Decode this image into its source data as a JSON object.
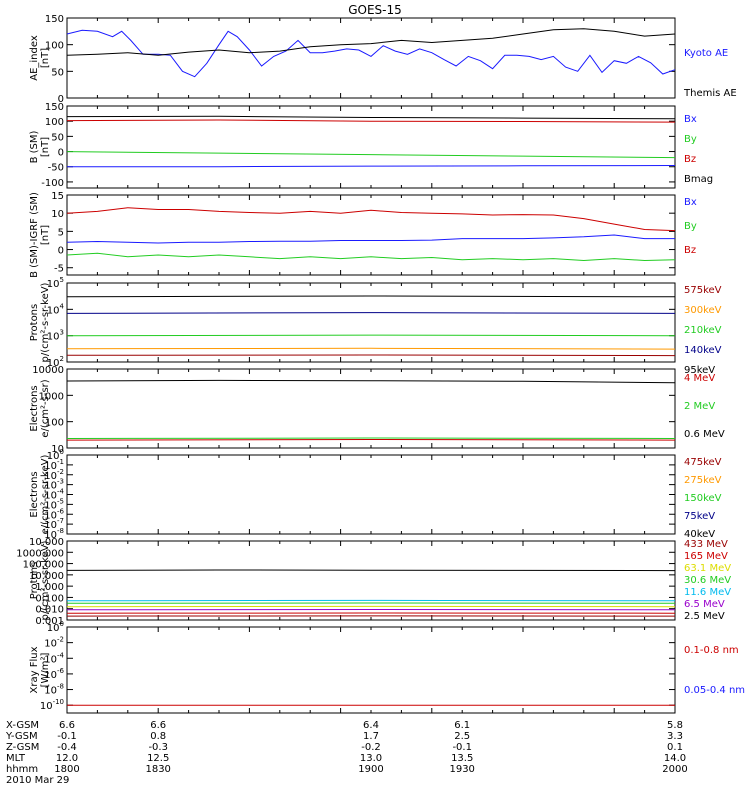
{
  "title": "GOES-15",
  "colors": {
    "black": "#000000",
    "blue": "#1a1aff",
    "red": "#cc0000",
    "green": "#22cc22",
    "orange": "#ff9900",
    "cyan": "#00bbee",
    "yellow": "#dddd00",
    "purple": "#9900cc",
    "darkred": "#990000",
    "navy": "#000088"
  },
  "footer": {
    "rows": [
      {
        "label": "X-GSM",
        "values": [
          "6.6",
          "6.6",
          "6.4",
          "6.1",
          "5.8"
        ]
      },
      {
        "label": "Y-GSM",
        "values": [
          "-0.1",
          "0.8",
          "1.7",
          "2.5",
          "3.3"
        ]
      },
      {
        "label": "Z-GSM",
        "values": [
          "-0.4",
          "-0.3",
          "-0.2",
          "-0.1",
          "0.1"
        ]
      },
      {
        "label": "MLT",
        "values": [
          "12.0",
          "12.5",
          "13.0",
          "13.5",
          "14.0"
        ]
      },
      {
        "label": "hhmm",
        "values": [
          "1800",
          "1830",
          "1900",
          "1930",
          "2000"
        ]
      }
    ],
    "date": "2010 Mar 29"
  },
  "chart_data": [
    {
      "type": "line",
      "ylabel": [
        "AE_index",
        "[nT]"
      ],
      "scale": "linear",
      "ylim": [
        0,
        150
      ],
      "ticks": [
        {
          "v": 0,
          "l": "0"
        },
        {
          "v": 50,
          "l": "50"
        },
        {
          "v": 100,
          "l": "100"
        },
        {
          "v": 150,
          "l": "150"
        }
      ],
      "xlim": [
        1800,
        2000
      ],
      "series": [
        {
          "name": "Kyoto AE",
          "color": "blue",
          "x": [
            1800,
            1805,
            1810,
            1815,
            1818,
            1821,
            1825,
            1830,
            1834,
            1838,
            1842,
            1846,
            1850,
            1853,
            1856,
            1860,
            1864,
            1868,
            1872,
            1876,
            1880,
            1884,
            1888,
            1892,
            1896,
            1900,
            1904,
            1908,
            1912,
            1916,
            1920,
            1924,
            1928,
            1932,
            1936,
            1940,
            1944,
            1948,
            1952,
            1956,
            1960,
            1964,
            1968,
            1972,
            1976,
            1980,
            1984,
            1988,
            1992,
            1996,
            2000
          ],
          "y": [
            120,
            127,
            125,
            115,
            125,
            108,
            82,
            82,
            80,
            50,
            40,
            65,
            100,
            125,
            115,
            90,
            60,
            78,
            88,
            108,
            85,
            85,
            88,
            92,
            90,
            78,
            98,
            88,
            82,
            92,
            85,
            72,
            60,
            78,
            70,
            55,
            80,
            80,
            78,
            72,
            78,
            58,
            50,
            80,
            48,
            70,
            65,
            78,
            66,
            45,
            53
          ]
        },
        {
          "name": "Themis AE",
          "color": "black",
          "x": [
            1800,
            1810,
            1820,
            1830,
            1840,
            1850,
            1860,
            1870,
            1880,
            1890,
            1900,
            1910,
            1920,
            1930,
            1940,
            1950,
            1960,
            1970,
            1980,
            1990,
            2000
          ],
          "y": [
            80,
            82,
            85,
            80,
            86,
            90,
            85,
            88,
            96,
            100,
            102,
            108,
            104,
            108,
            112,
            120,
            128,
            130,
            125,
            116,
            120
          ]
        }
      ]
    },
    {
      "type": "line",
      "ylabel": [
        "B (SM)",
        "[nT]"
      ],
      "scale": "linear",
      "ylim": [
        -120,
        150
      ],
      "ticks": [
        {
          "v": -100,
          "l": "-100"
        },
        {
          "v": -50,
          "l": "-50"
        },
        {
          "v": 0,
          "l": "0"
        },
        {
          "v": 50,
          "l": "50"
        },
        {
          "v": 100,
          "l": "100"
        },
        {
          "v": 150,
          "l": "150"
        }
      ],
      "xlim": [
        1800,
        2000
      ],
      "series": [
        {
          "name": "Bx",
          "color": "blue",
          "x": [
            1800,
            1850,
            1900,
            1950,
            2000
          ],
          "y": [
            -50,
            -50,
            -48,
            -47,
            -46
          ]
        },
        {
          "name": "By",
          "color": "green",
          "x": [
            1800,
            1850,
            1900,
            1950,
            2000
          ],
          "y": [
            0,
            -5,
            -10,
            -15,
            -20
          ]
        },
        {
          "name": "Bz",
          "color": "red",
          "x": [
            1800,
            1850,
            1900,
            1950,
            2000
          ],
          "y": [
            102,
            104,
            100,
            99,
            97
          ]
        },
        {
          "name": "Bmag",
          "color": "black",
          "x": [
            1800,
            1850,
            1900,
            1950,
            2000
          ],
          "y": [
            115,
            116,
            112,
            110,
            108
          ]
        }
      ]
    },
    {
      "type": "line",
      "ylabel": [
        "B (SM)-IGRF (SM)",
        "[nT]"
      ],
      "scale": "linear",
      "ylim": [
        -7,
        15
      ],
      "ticks": [
        {
          "v": -5,
          "l": "-5"
        },
        {
          "v": 0,
          "l": "0"
        },
        {
          "v": 5,
          "l": "5"
        },
        {
          "v": 10,
          "l": "10"
        },
        {
          "v": 15,
          "l": "15"
        }
      ],
      "xlim": [
        1800,
        2000
      ],
      "series": [
        {
          "name": "Bx",
          "color": "blue",
          "x": [
            1800,
            1810,
            1820,
            1830,
            1840,
            1850,
            1860,
            1870,
            1880,
            1890,
            1900,
            1910,
            1920,
            1930,
            1940,
            1950,
            1960,
            1970,
            1980,
            1990,
            2000
          ],
          "y": [
            2,
            2.2,
            2,
            1.8,
            2,
            2,
            2.2,
            2.3,
            2.3,
            2.5,
            2.5,
            2.5,
            2.6,
            3,
            3,
            3,
            3.2,
            3.5,
            4,
            3,
            3
          ]
        },
        {
          "name": "By",
          "color": "green",
          "x": [
            1800,
            1810,
            1820,
            1830,
            1840,
            1850,
            1860,
            1870,
            1880,
            1890,
            1900,
            1910,
            1920,
            1930,
            1940,
            1950,
            1960,
            1970,
            1980,
            1990,
            2000
          ],
          "y": [
            -1.5,
            -1,
            -2,
            -1.5,
            -2,
            -1.5,
            -2,
            -2.5,
            -2,
            -2.5,
            -2,
            -2.5,
            -2.2,
            -2.8,
            -2.5,
            -2.8,
            -2.5,
            -3,
            -2.5,
            -3,
            -2.8
          ]
        },
        {
          "name": "Bz",
          "color": "red",
          "x": [
            1800,
            1810,
            1820,
            1830,
            1840,
            1850,
            1860,
            1870,
            1880,
            1890,
            1900,
            1910,
            1920,
            1930,
            1940,
            1950,
            1960,
            1970,
            1980,
            1990,
            2000
          ],
          "y": [
            10,
            10.5,
            11.5,
            11,
            11,
            10.5,
            10.2,
            10,
            10.5,
            10,
            10.8,
            10.2,
            10,
            9.8,
            9.5,
            9.6,
            9.5,
            8.5,
            7,
            5.5,
            5.2
          ]
        }
      ]
    },
    {
      "type": "line",
      "ylabel": [
        "Protons",
        "p/(cm²-s-sr-keV)"
      ],
      "scale": "log",
      "ylim": [
        100,
        100000
      ],
      "ticks": [
        {
          "v": 100,
          "b": "10",
          "e": "2"
        },
        {
          "v": 1000,
          "b": "10",
          "e": "3"
        },
        {
          "v": 10000,
          "b": "10",
          "e": "4"
        },
        {
          "v": 100000,
          "b": "10",
          "e": "5"
        }
      ],
      "xlim": [
        1800,
        2000
      ],
      "series": [
        {
          "name": "575keV",
          "color": "darkred",
          "x": [
            1800,
            1900,
            2000
          ],
          "y": [
            180,
            185,
            175
          ]
        },
        {
          "name": "300keV",
          "color": "orange",
          "x": [
            1800,
            1900,
            2000
          ],
          "y": [
            320,
            330,
            310
          ]
        },
        {
          "name": "210keV",
          "color": "green",
          "x": [
            1800,
            1900,
            2000
          ],
          "y": [
            1000,
            1050,
            1000
          ]
        },
        {
          "name": "140keV",
          "color": "navy",
          "x": [
            1800,
            1900,
            2000
          ],
          "y": [
            7000,
            7500,
            7000
          ]
        },
        {
          "name": "95keV",
          "color": "black",
          "x": [
            1800,
            1900,
            2000
          ],
          "y": [
            30000,
            32000,
            30000
          ]
        }
      ]
    },
    {
      "type": "line",
      "ylabel": [
        "Electrons",
        "e/(cm²-s-sr)"
      ],
      "scale": "log",
      "ylim": [
        10,
        10000
      ],
      "ticks": [
        {
          "v": 10,
          "l": "10"
        },
        {
          "v": 100,
          "l": "100"
        },
        {
          "v": 1000,
          "l": "1000"
        },
        {
          "v": 10000,
          "l": "10000"
        }
      ],
      "xlim": [
        1800,
        2000
      ],
      "series": [
        {
          "name": "4 MeV",
          "color": "red",
          "x": [
            1800,
            1900,
            2000
          ],
          "y": [
            20,
            21,
            20
          ]
        },
        {
          "name": "2 MeV",
          "color": "green",
          "x": [
            1800,
            1900,
            2000
          ],
          "y": [
            23,
            24,
            23
          ]
        },
        {
          "name": "0.6 MeV",
          "color": "black",
          "x": [
            1800,
            1850,
            1900,
            1950,
            2000
          ],
          "y": [
            3500,
            3700,
            3600,
            3400,
            3000
          ]
        }
      ]
    },
    {
      "type": "line",
      "ylabel": [
        "Electrons",
        "e/(cm²-s-sr-keV)"
      ],
      "scale": "log",
      "ylim": [
        1e-08,
        1
      ],
      "ticks": [
        {
          "v": 1e-08,
          "b": "10",
          "e": "-8"
        },
        {
          "v": 1e-07,
          "b": "10",
          "e": "-7"
        },
        {
          "v": 1e-06,
          "b": "10",
          "e": "-6"
        },
        {
          "v": 1e-05,
          "b": "10",
          "e": "-5"
        },
        {
          "v": 0.0001,
          "b": "10",
          "e": "-4"
        },
        {
          "v": 0.001,
          "b": "10",
          "e": "-3"
        },
        {
          "v": 0.01,
          "b": "10",
          "e": "-2"
        },
        {
          "v": 0.1,
          "b": "10",
          "e": "-1"
        },
        {
          "v": 1,
          "b": "10",
          "e": "0"
        }
      ],
      "xlim": [
        1800,
        2000
      ],
      "series": [
        {
          "name": "475keV",
          "color": "darkred",
          "x": [],
          "y": []
        },
        {
          "name": "275keV",
          "color": "orange",
          "x": [],
          "y": []
        },
        {
          "name": "150keV",
          "color": "green",
          "x": [],
          "y": []
        },
        {
          "name": "75keV",
          "color": "navy",
          "x": [],
          "y": []
        },
        {
          "name": "40keV",
          "color": "black",
          "x": [],
          "y": []
        }
      ]
    },
    {
      "type": "line",
      "ylabel": [
        "Protons",
        "p/(cm²-s-sr-keV)"
      ],
      "scale": "log",
      "ylim": [
        0.001,
        10000
      ],
      "ticks": [
        {
          "v": 0.001,
          "l": "0.001"
        },
        {
          "v": 0.01,
          "l": "0.010"
        },
        {
          "v": 0.1,
          "l": "0.100"
        },
        {
          "v": 1,
          "l": "1.000"
        },
        {
          "v": 10,
          "l": "10.000"
        },
        {
          "v": 100,
          "l": "100.000"
        },
        {
          "v": 1000,
          "l": "1000.000"
        },
        {
          "v": 10000,
          "l": "10.000"
        }
      ],
      "xlim": [
        1800,
        2000
      ],
      "series": [
        {
          "name": "433 MeV",
          "color": "darkred",
          "x": [
            1800,
            1900,
            2000
          ],
          "y": [
            0.0022,
            0.0023,
            0.0022
          ]
        },
        {
          "name": "165 MeV",
          "color": "red",
          "x": [
            1800,
            1900,
            2000
          ],
          "y": [
            0.004,
            0.0042,
            0.004
          ]
        },
        {
          "name": "63.1 MeV",
          "color": "yellow",
          "x": [
            1800,
            1900,
            2000
          ],
          "y": [
            0.015,
            0.016,
            0.015
          ]
        },
        {
          "name": "30.6 MeV",
          "color": "green",
          "x": [
            1800,
            1900,
            2000
          ],
          "y": [
            0.03,
            0.032,
            0.03
          ]
        },
        {
          "name": "11.6 MeV",
          "color": "cyan",
          "x": [
            1800,
            1900,
            2000
          ],
          "y": [
            0.05,
            0.055,
            0.05
          ]
        },
        {
          "name": "6.5 MeV",
          "color": "purple",
          "x": [
            1800,
            1900,
            2000
          ],
          "y": [
            0.008,
            0.0085,
            0.008
          ]
        },
        {
          "name": "2.5 MeV",
          "color": "black",
          "x": [
            1800,
            1850,
            1900,
            1950,
            2000
          ],
          "y": [
            25,
            27,
            26,
            25,
            24
          ]
        }
      ]
    },
    {
      "type": "line",
      "ylabel": [
        "Xray Flux",
        "[W/m²]"
      ],
      "scale": "log",
      "ylim": [
        1e-11,
        1
      ],
      "ticks": [
        {
          "v": 1e-10,
          "b": "10",
          "e": "-10"
        },
        {
          "v": 1e-08,
          "b": "10",
          "e": "-8"
        },
        {
          "v": 1e-06,
          "b": "10",
          "e": "-6"
        },
        {
          "v": 0.0001,
          "b": "10",
          "e": "-4"
        },
        {
          "v": 0.01,
          "b": "10",
          "e": "-2"
        },
        {
          "v": 1,
          "b": "10",
          "e": "0"
        }
      ],
      "xlim": [
        1800,
        2000
      ],
      "series": [
        {
          "name": "0.1-0.8 nm",
          "color": "red",
          "x": [
            1800,
            2000
          ],
          "y": [
            1e-10,
            1e-10
          ]
        },
        {
          "name": "0.05-0.4 nm",
          "color": "blue",
          "x": [],
          "y": []
        }
      ]
    }
  ]
}
